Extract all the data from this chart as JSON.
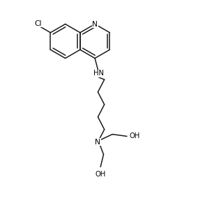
{
  "background_color": "#ffffff",
  "line_color": "#1a1a1a",
  "line_width": 1.1,
  "font_size": 7.2,
  "figsize": [
    2.94,
    2.94
  ],
  "dpi": 100,
  "xlim": [
    0,
    10
  ],
  "ylim": [
    0,
    10
  ]
}
